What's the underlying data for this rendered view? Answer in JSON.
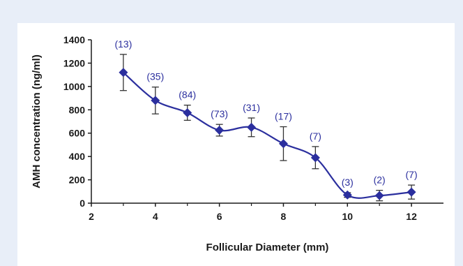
{
  "chart_data": {
    "type": "line",
    "title": "",
    "xlabel": "Follicular Diameter (mm)",
    "ylabel": "AMH concentration (ng/ml)",
    "xlim": [
      2,
      13
    ],
    "ylim": [
      0,
      1400
    ],
    "x_ticks": [
      2,
      4,
      6,
      8,
      10,
      12
    ],
    "y_ticks": [
      0,
      200,
      400,
      600,
      800,
      1000,
      1200,
      1400
    ],
    "grid": false,
    "legend": "none",
    "series_color": "#2b2f9e",
    "errorbar_color": "#333333",
    "series": [
      {
        "x": [
          3,
          4,
          5,
          6,
          7,
          8,
          9,
          10,
          11,
          12
        ],
        "y": [
          1120,
          880,
          775,
          625,
          650,
          510,
          390,
          70,
          65,
          95
        ],
        "error": [
          155,
          115,
          65,
          50,
          80,
          145,
          95,
          20,
          45,
          60
        ],
        "labels": [
          "(13)",
          "(35)",
          "(84)",
          "(73)",
          "(31)",
          "(17)",
          "(7)",
          "(3)",
          "(2)",
          "(7)"
        ]
      }
    ]
  }
}
